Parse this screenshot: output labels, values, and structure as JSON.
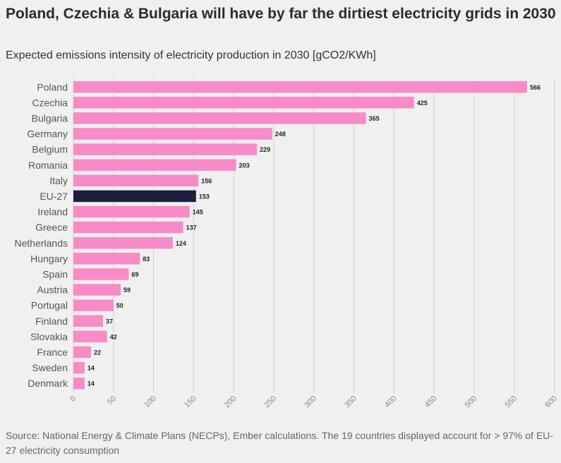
{
  "title": "Poland, Czechia & Bulgaria will have by far the dirtiest electricity grids in 2030",
  "subtitle": "Expected emissions intensity of electricity production in 2030 [gCO2/KWh]",
  "source": "Source: National Energy & Climate Plans (NECPs), Ember calculations. The 19 countries displayed account for > 97% of EU-27 electricity consumption",
  "colors": {
    "bar": "#f78bc7",
    "highlight": "#1e1f3d",
    "background": "#f0f0f0",
    "grid": "#cfcfcf"
  },
  "chart_data": {
    "type": "bar",
    "orientation": "horizontal",
    "title": "Poland, Czechia & Bulgaria will have by far the dirtiest electricity grids in 2030",
    "subtitle": "Expected emissions intensity of electricity production in 2030 [gCO2/KWh]",
    "categories": [
      "Poland",
      "Czechia",
      "Bulgaria",
      "Germany",
      "Belgium",
      "Romania",
      "Italy",
      "EU-27",
      "Ireland",
      "Greece",
      "Netherlands",
      "Hungary",
      "Spain",
      "Austria",
      "Portugal",
      "Finland",
      "Slovakia",
      "France",
      "Sweden",
      "Denmark"
    ],
    "values": [
      566,
      425,
      365,
      248,
      229,
      203,
      156,
      153,
      145,
      137,
      124,
      83,
      69,
      59,
      50,
      37,
      42,
      22,
      14,
      14
    ],
    "highlight": "EU-27",
    "xlim": [
      0,
      600
    ],
    "ticks": [
      0,
      50,
      100,
      150,
      200,
      250,
      300,
      350,
      400,
      450,
      500,
      550,
      600
    ],
    "grid": true,
    "xlabel": "",
    "ylabel": ""
  }
}
